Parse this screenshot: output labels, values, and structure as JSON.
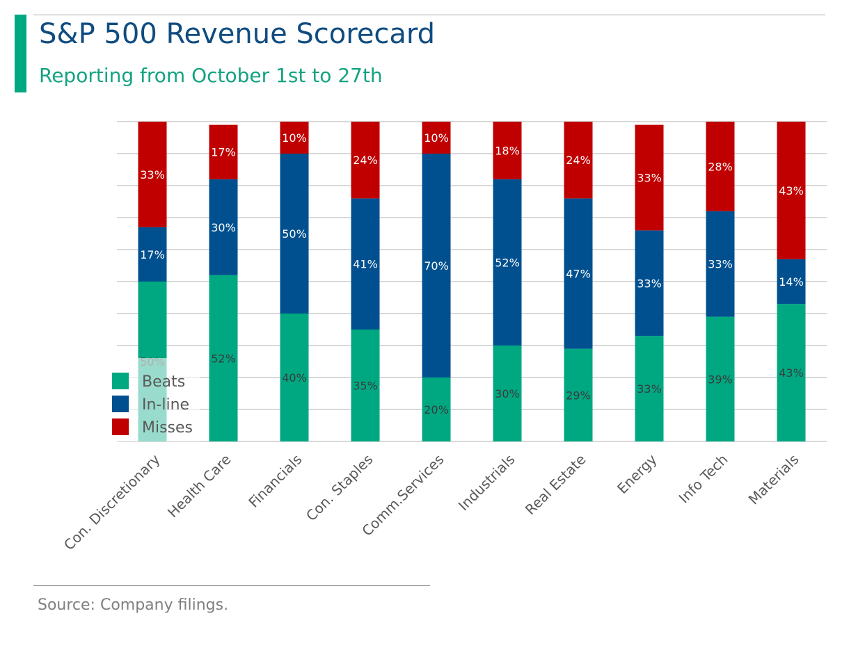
{
  "header": {
    "title": "S&P 500 Revenue Scorecard",
    "subtitle": "Reporting from October 1st to 27th"
  },
  "footer": {
    "source": "Source: Company filings."
  },
  "colors": {
    "beats": "#00a882",
    "inline": "#00508f",
    "misses": "#c00000",
    "gridline": "#d9d9d9",
    "axis_label": "#595959",
    "accent": "#00a882",
    "title": "#0f4c81"
  },
  "chart_data": {
    "type": "bar",
    "stacked": true,
    "percent_stacked": true,
    "title": "S&P 500 Revenue Scorecard",
    "subtitle": "Reporting from October 1st to 27th",
    "categories": [
      "Con. Discretionary",
      "Health Care",
      "Financials",
      "Con. Staples",
      "Comm.Services",
      "Industrials",
      "Real Estate",
      "Energy",
      "Info Tech",
      "Materials"
    ],
    "series": [
      {
        "name": "Beats",
        "values": [
          50,
          52,
          40,
          35,
          20,
          30,
          29,
          33,
          39,
          43
        ]
      },
      {
        "name": "In-line",
        "values": [
          17,
          30,
          50,
          41,
          70,
          52,
          47,
          33,
          33,
          14
        ]
      },
      {
        "name": "Misses",
        "values": [
          33,
          17,
          10,
          24,
          10,
          18,
          24,
          33,
          28,
          43
        ]
      }
    ],
    "value_suffix": "%",
    "ylim": [
      0,
      100
    ],
    "grid": true,
    "legend": "bottom-left inside plot",
    "xlabel": "",
    "ylabel": ""
  }
}
